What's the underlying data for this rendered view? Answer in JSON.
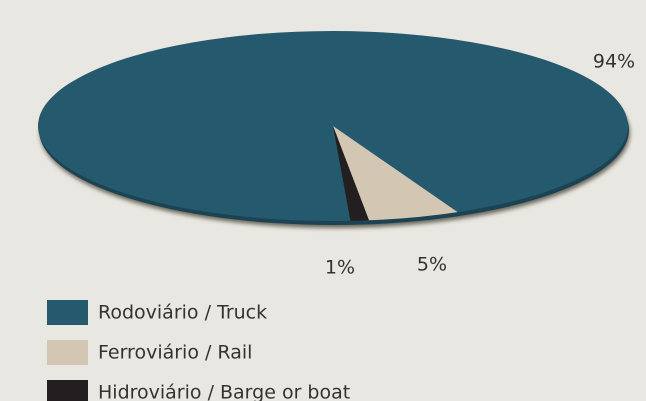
{
  "chart_data": {
    "type": "pie",
    "categories": [
      "Rodoviário / Truck",
      "Ferroviário / Rail",
      "Hidroviário / Barge or boat"
    ],
    "values": [
      94,
      5,
      1
    ],
    "value_labels": [
      "94%",
      "5%",
      "1%"
    ],
    "colors": [
      "#255a6e",
      "#d3c7b3",
      "#231f20"
    ]
  }
}
